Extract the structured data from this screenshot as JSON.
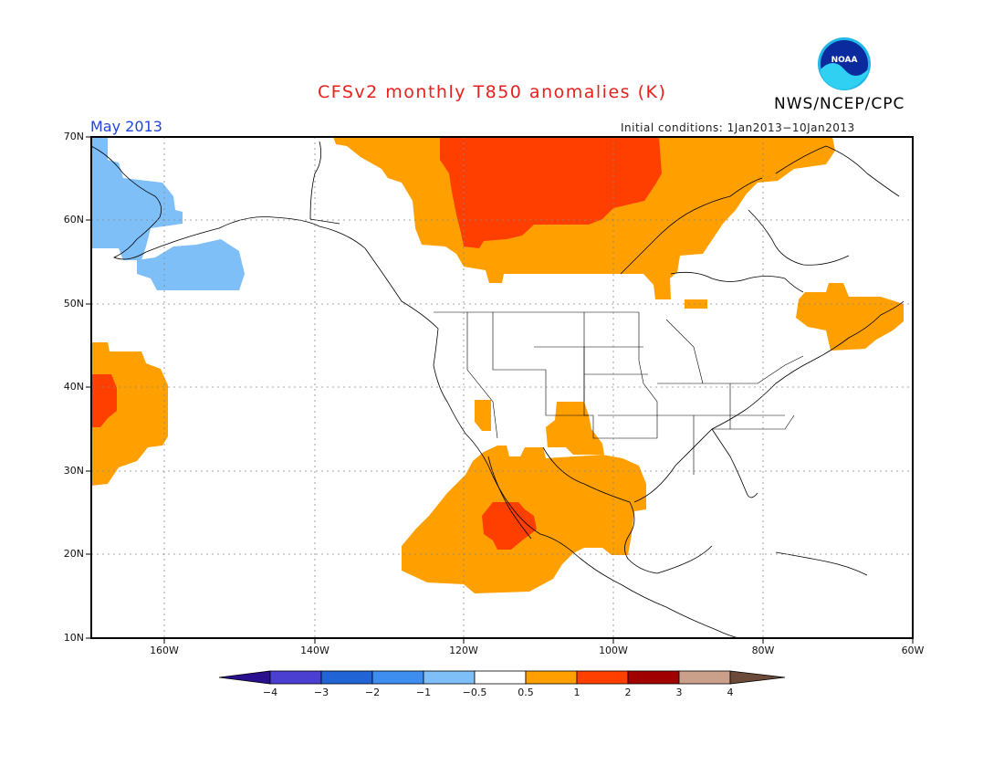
{
  "header": {
    "title": "CFSv2 monthly T850 anomalies (K)",
    "agency": "NWS/NCEP/CPC",
    "logo_text": "NOAA",
    "month": "May 2013",
    "initial_conditions": "Initial conditions: 1Jan2013−10Jan2013"
  },
  "map": {
    "projection": "lat-lon",
    "lon_range": [
      -175,
      -60
    ],
    "lat_range": [
      10,
      70
    ],
    "lat_labels": [
      "70N",
      "60N",
      "50N",
      "40N",
      "30N",
      "20N",
      "10N"
    ],
    "lon_labels": [
      "160W",
      "140W",
      "120W",
      "100W",
      "80W",
      "60W"
    ],
    "grid": true
  },
  "colorbar": {
    "labels": [
      "−4",
      "−3",
      "−2",
      "−1",
      "−0.5",
      "0.5",
      "1",
      "2",
      "3",
      "4"
    ],
    "colors": [
      "#2a0f8f",
      "#4a3fd0",
      "#2164d6",
      "#3e8ef0",
      "#7fbff8",
      "#ffffff",
      "#ff9f00",
      "#ff3f00",
      "#a00000",
      "#caa08a",
      "#6b4a3a"
    ]
  },
  "colors": {
    "title": "#e8201d",
    "month": "#2244dd",
    "warm1": "#ff9f00",
    "warm2": "#ff3f00",
    "cool1": "#7fbff8"
  }
}
